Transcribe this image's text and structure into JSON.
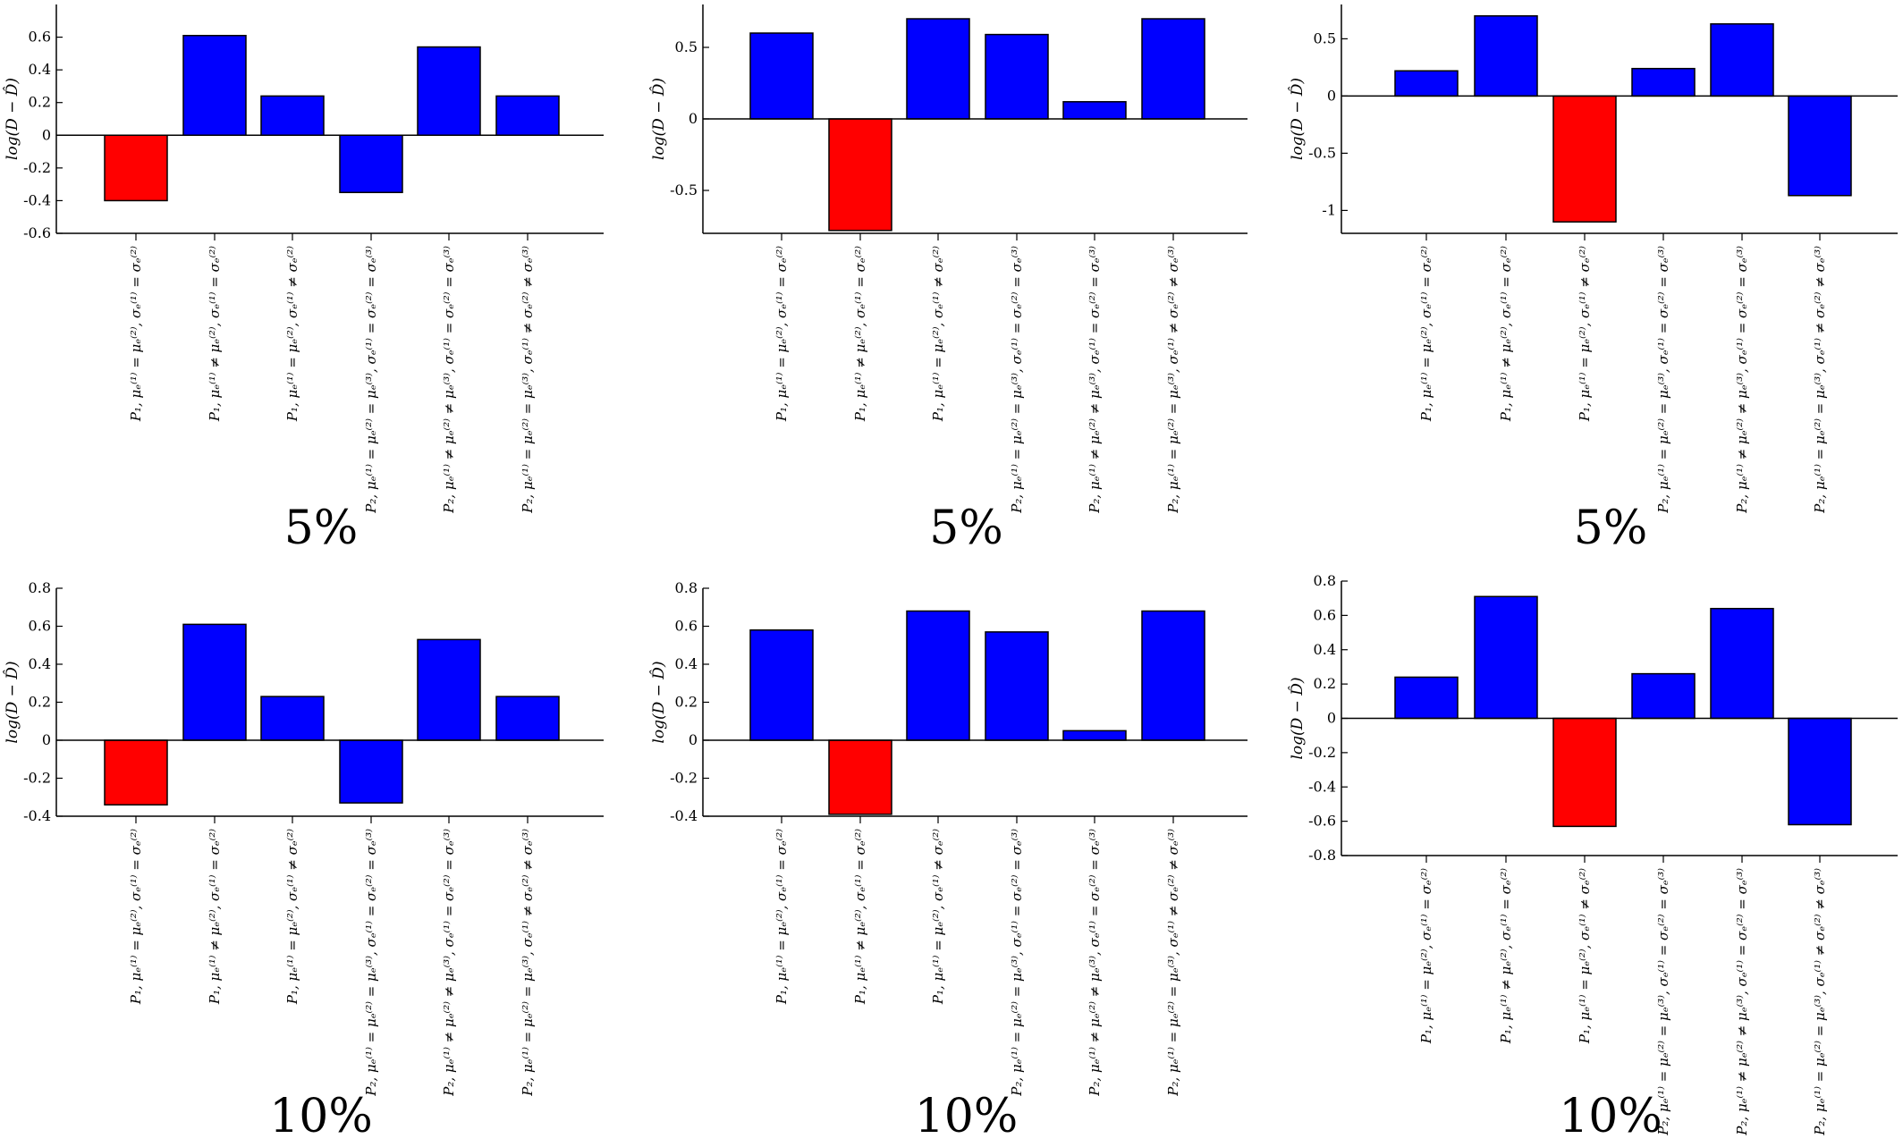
{
  "categories": [
    "P₁, μₑ⁽¹⁾ = μₑ⁽²⁾, σₑ⁽¹⁾ = σₑ⁽²⁾",
    "P₁, μₑ⁽¹⁾ ≠ μₑ⁽²⁾, σₑ⁽¹⁾ = σₑ⁽²⁾",
    "P₁, μₑ⁽¹⁾ = μₑ⁽²⁾, σₑ⁽¹⁾ ≠ σₑ⁽²⁾",
    "P₂, μₑ⁽¹⁾ = μₑ⁽²⁾ = μₑ⁽³⁾, σₑ⁽¹⁾ = σₑ⁽²⁾ = σₑ⁽³⁾",
    "P₂, μₑ⁽¹⁾ ≠ μₑ⁽²⁾ ≠ μₑ⁽³⁾, σₑ⁽¹⁾ = σₑ⁽²⁾ = σₑ⁽³⁾",
    "P₂, μₑ⁽¹⁾ = μₑ⁽²⁾ = μₑ⁽³⁾, σₑ⁽¹⁾ ≠ σₑ⁽²⁾ ≠ σₑ⁽³⁾"
  ],
  "colors": {
    "highlight": "#ff0000",
    "normal": "#0000ff"
  },
  "chart_data": [
    {
      "type": "bar",
      "caption": "5%",
      "ylabel": "log(D − D̂)",
      "ylim": [
        -0.6,
        0.8
      ],
      "yticks": [
        -0.6,
        -0.4,
        -0.2,
        0,
        0.2,
        0.4,
        0.6
      ],
      "ytick_labels": [
        "-0.6",
        "-0.4",
        "-0.2",
        "0",
        "0.2",
        "0.4",
        "0.6"
      ],
      "values": [
        -0.4,
        0.61,
        0.24,
        -0.35,
        0.54,
        0.24
      ],
      "highlight_index": 0
    },
    {
      "type": "bar",
      "caption": "5%",
      "ylabel": "log(D − D̂)",
      "ylim": [
        -0.8,
        0.8
      ],
      "yticks": [
        -0.5,
        0,
        0.5
      ],
      "ytick_labels": [
        "-0.5",
        "0",
        "0.5"
      ],
      "values": [
        0.6,
        -0.78,
        0.7,
        0.59,
        0.12,
        0.7
      ],
      "highlight_index": 1
    },
    {
      "type": "bar",
      "caption": "5%",
      "ylabel": "log(D − D̂)",
      "ylim": [
        -1.2,
        0.8
      ],
      "yticks": [
        -1,
        -0.5,
        0,
        0.5
      ],
      "ytick_labels": [
        "-1",
        "-0.5",
        "0",
        "0.5"
      ],
      "values": [
        0.22,
        0.7,
        -1.1,
        0.24,
        0.63,
        -0.87
      ],
      "highlight_index": 2
    },
    {
      "type": "bar",
      "caption": "10%",
      "ylabel": "log(D − D̂)",
      "ylim": [
        -0.4,
        0.8
      ],
      "yticks": [
        -0.4,
        -0.2,
        0,
        0.2,
        0.4,
        0.6,
        0.8
      ],
      "ytick_labels": [
        "-0.4",
        "-0.2",
        "0",
        "0.2",
        "0.4",
        "0.6",
        "0.8"
      ],
      "values": [
        -0.34,
        0.61,
        0.23,
        -0.33,
        0.53,
        0.23
      ],
      "highlight_index": 0
    },
    {
      "type": "bar",
      "caption": "10%",
      "ylabel": "log(D − D̂)",
      "ylim": [
        -0.4,
        0.8
      ],
      "yticks": [
        -0.4,
        -0.2,
        0,
        0.2,
        0.4,
        0.6,
        0.8
      ],
      "ytick_labels": [
        "-0.4",
        "-0.2",
        "0",
        "0.2",
        "0.4",
        "0.6",
        "0.8"
      ],
      "values": [
        0.58,
        -0.39,
        0.68,
        0.57,
        0.05,
        0.68
      ],
      "highlight_index": 1
    },
    {
      "type": "bar",
      "caption": "10%",
      "ylabel": "log(D − D̂)",
      "ylim": [
        -0.8,
        0.8
      ],
      "yticks": [
        -0.8,
        -0.6,
        -0.4,
        -0.2,
        0,
        0.2,
        0.4,
        0.6,
        0.8
      ],
      "ytick_labels": [
        "-0.8",
        "-0.6",
        "-0.4",
        "-0.2",
        "0",
        "0.2",
        "0.4",
        "0.6",
        "0.8"
      ],
      "values": [
        0.24,
        0.71,
        -0.63,
        0.26,
        0.64,
        -0.62
      ],
      "highlight_index": 2
    }
  ]
}
